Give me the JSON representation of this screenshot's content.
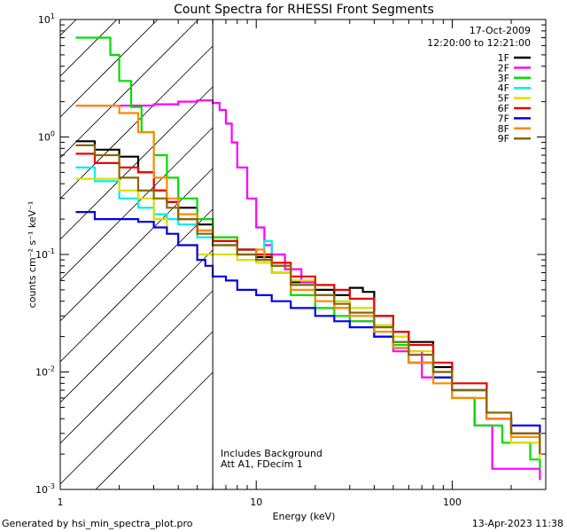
{
  "chart_data": {
    "type": "line",
    "title": "Count Spectra for RHESSI Front Segments",
    "xlabel": "Energy (keV)",
    "ylabel": "counts cm⁻² s⁻¹ keV⁻¹",
    "xscale": "log",
    "yscale": "log",
    "xlim": [
      1,
      300
    ],
    "ylim": [
      0.001,
      10
    ],
    "x_ticks": [
      {
        "value": 1,
        "label": "1"
      },
      {
        "value": 10,
        "label": "10"
      },
      {
        "value": 100,
        "label": "100"
      }
    ],
    "y_ticks": [
      {
        "value": 10,
        "base": "10",
        "exp": "1"
      },
      {
        "value": 1,
        "base": "10",
        "exp": "0"
      },
      {
        "value": 0.1,
        "base": "10",
        "exp": "-1"
      },
      {
        "value": 0.01,
        "base": "10",
        "exp": "-2"
      },
      {
        "value": 0.001,
        "base": "10",
        "exp": "-3"
      }
    ],
    "date": "17-Oct-2009",
    "time_range": "12:20:00 to 12:21:00",
    "shaded_region_x": [
      1,
      6
    ],
    "vertical_line_x": 6,
    "annotations": [
      "Includes Background",
      "Att A1, FDecim 1"
    ],
    "series": [
      {
        "name": "1F",
        "color": "#000000",
        "points": [
          [
            1.2,
            0.92
          ],
          [
            1.5,
            0.78
          ],
          [
            2.0,
            0.68
          ],
          [
            2.5,
            0.5
          ],
          [
            3.0,
            0.35
          ],
          [
            3.5,
            0.28
          ],
          [
            4.0,
            0.25
          ],
          [
            5.0,
            0.18
          ],
          [
            6.0,
            0.13
          ],
          [
            8.0,
            0.11
          ],
          [
            10.0,
            0.095
          ],
          [
            12.0,
            0.07
          ],
          [
            15.0,
            0.058
          ],
          [
            20.0,
            0.05
          ],
          [
            25.0,
            0.045
          ],
          [
            30.0,
            0.052
          ],
          [
            35.0,
            0.048
          ],
          [
            40.0,
            0.03
          ],
          [
            50.0,
            0.022
          ],
          [
            60.0,
            0.018
          ],
          [
            80.0,
            0.011
          ],
          [
            100.0,
            0.007
          ],
          [
            150.0,
            0.004
          ],
          [
            200.0,
            0.003
          ],
          [
            280.0,
            0.002
          ]
        ]
      },
      {
        "name": "2F",
        "color": "#ff00ff",
        "points": [
          [
            1.2,
            1.85
          ],
          [
            2.0,
            1.85
          ],
          [
            3.0,
            1.9
          ],
          [
            4.0,
            2.0
          ],
          [
            5.0,
            2.05
          ],
          [
            6.0,
            1.95
          ],
          [
            6.5,
            1.7
          ],
          [
            7.0,
            1.3
          ],
          [
            7.5,
            0.9
          ],
          [
            8.0,
            0.55
          ],
          [
            9.0,
            0.3
          ],
          [
            10.0,
            0.17
          ],
          [
            11.0,
            0.12
          ],
          [
            12.0,
            0.1
          ],
          [
            14.0,
            0.075
          ],
          [
            17.0,
            0.058
          ],
          [
            20.0,
            0.045
          ],
          [
            25.0,
            0.035
          ],
          [
            30.0,
            0.027
          ],
          [
            40.0,
            0.02
          ],
          [
            50.0,
            0.015
          ],
          [
            70.0,
            0.009
          ],
          [
            100.0,
            0.006
          ],
          [
            130.0,
            0.0035
          ],
          [
            160.0,
            0.0015
          ],
          [
            200.0,
            0.0015
          ],
          [
            280.0,
            0.0012
          ]
        ]
      },
      {
        "name": "3F",
        "color": "#00dd00",
        "points": [
          [
            1.2,
            7.0
          ],
          [
            1.5,
            7.0
          ],
          [
            1.8,
            5.0
          ],
          [
            2.0,
            3.0
          ],
          [
            2.3,
            1.8
          ],
          [
            2.6,
            1.1
          ],
          [
            3.0,
            0.7
          ],
          [
            3.5,
            0.45
          ],
          [
            4.0,
            0.3
          ],
          [
            5.0,
            0.2
          ],
          [
            6.0,
            0.14
          ],
          [
            8.0,
            0.11
          ],
          [
            10.0,
            0.1
          ],
          [
            12.0,
            0.08
          ],
          [
            15.0,
            0.045
          ],
          [
            20.0,
            0.035
          ],
          [
            25.0,
            0.03
          ],
          [
            30.0,
            0.027
          ],
          [
            40.0,
            0.02
          ],
          [
            50.0,
            0.017
          ],
          [
            60.0,
            0.012
          ],
          [
            80.0,
            0.009
          ],
          [
            100.0,
            0.006
          ],
          [
            130.0,
            0.0035
          ],
          [
            180.0,
            0.0025
          ],
          [
            250.0,
            0.0018
          ],
          [
            280.0,
            0.0015
          ]
        ]
      },
      {
        "name": "4F",
        "color": "#00eeee",
        "points": [
          [
            1.2,
            0.55
          ],
          [
            1.5,
            0.42
          ],
          [
            2.0,
            0.3
          ],
          [
            2.5,
            0.25
          ],
          [
            3.0,
            0.22
          ],
          [
            3.5,
            0.2
          ],
          [
            4.0,
            0.18
          ],
          [
            5.0,
            0.14
          ],
          [
            6.0,
            0.12
          ],
          [
            8.0,
            0.1
          ],
          [
            10.0,
            0.09
          ],
          [
            11.0,
            0.13
          ],
          [
            12.0,
            0.08
          ],
          [
            15.0,
            0.055
          ],
          [
            20.0,
            0.045
          ],
          [
            25.0,
            0.04
          ],
          [
            30.0,
            0.035
          ],
          [
            40.0,
            0.025
          ],
          [
            50.0,
            0.018
          ],
          [
            60.0,
            0.014
          ],
          [
            80.0,
            0.01
          ],
          [
            100.0,
            0.007
          ],
          [
            150.0,
            0.004
          ],
          [
            200.0,
            0.003
          ],
          [
            280.0,
            0.0022
          ]
        ]
      },
      {
        "name": "5F",
        "color": "#dddd00",
        "points": [
          [
            1.2,
            0.44
          ],
          [
            1.5,
            0.44
          ],
          [
            2.0,
            0.35
          ],
          [
            2.5,
            0.3
          ],
          [
            3.0,
            0.2
          ],
          [
            3.5,
            0.15
          ],
          [
            4.0,
            0.12
          ],
          [
            5.0,
            0.1
          ],
          [
            6.0,
            0.1
          ],
          [
            8.0,
            0.09
          ],
          [
            10.0,
            0.085
          ],
          [
            12.0,
            0.07
          ],
          [
            15.0,
            0.06
          ],
          [
            20.0,
            0.045
          ],
          [
            25.0,
            0.04
          ],
          [
            30.0,
            0.035
          ],
          [
            40.0,
            0.025
          ],
          [
            50.0,
            0.02
          ],
          [
            60.0,
            0.015
          ],
          [
            80.0,
            0.01
          ],
          [
            100.0,
            0.007
          ],
          [
            150.0,
            0.004
          ],
          [
            200.0,
            0.0025
          ],
          [
            280.0,
            0.0018
          ]
        ]
      },
      {
        "name": "6F",
        "color": "#ee0000",
        "points": [
          [
            1.2,
            0.72
          ],
          [
            1.5,
            0.6
          ],
          [
            2.0,
            0.55
          ],
          [
            2.5,
            0.5
          ],
          [
            3.0,
            0.35
          ],
          [
            3.5,
            0.28
          ],
          [
            4.0,
            0.2
          ],
          [
            5.0,
            0.16
          ],
          [
            6.0,
            0.13
          ],
          [
            8.0,
            0.11
          ],
          [
            10.0,
            0.1
          ],
          [
            12.0,
            0.085
          ],
          [
            15.0,
            0.065
          ],
          [
            20.0,
            0.055
          ],
          [
            25.0,
            0.05
          ],
          [
            30.0,
            0.042
          ],
          [
            40.0,
            0.03
          ],
          [
            50.0,
            0.022
          ],
          [
            60.0,
            0.017
          ],
          [
            80.0,
            0.012
          ],
          [
            100.0,
            0.008
          ],
          [
            150.0,
            0.004
          ],
          [
            200.0,
            0.003
          ],
          [
            280.0,
            0.002
          ]
        ]
      },
      {
        "name": "7F",
        "color": "#0000ee",
        "points": [
          [
            1.2,
            0.23
          ],
          [
            1.5,
            0.2
          ],
          [
            2.0,
            0.2
          ],
          [
            2.5,
            0.19
          ],
          [
            3.0,
            0.17
          ],
          [
            3.5,
            0.15
          ],
          [
            4.0,
            0.12
          ],
          [
            5.0,
            0.09
          ],
          [
            5.5,
            0.08
          ],
          [
            6.0,
            0.065
          ],
          [
            7.0,
            0.06
          ],
          [
            8.0,
            0.05
          ],
          [
            10.0,
            0.045
          ],
          [
            12.0,
            0.04
          ],
          [
            15.0,
            0.035
          ],
          [
            20.0,
            0.03
          ],
          [
            25.0,
            0.027
          ],
          [
            30.0,
            0.024
          ],
          [
            40.0,
            0.02
          ],
          [
            50.0,
            0.016
          ],
          [
            60.0,
            0.012
          ],
          [
            80.0,
            0.009
          ],
          [
            100.0,
            0.007
          ],
          [
            150.0,
            0.004
          ],
          [
            200.0,
            0.0035
          ],
          [
            280.0,
            0.0025
          ]
        ]
      },
      {
        "name": "8F",
        "color": "#ff8800",
        "points": [
          [
            1.2,
            1.85
          ],
          [
            1.5,
            1.85
          ],
          [
            2.0,
            1.6
          ],
          [
            2.5,
            1.1
          ],
          [
            3.0,
            0.45
          ],
          [
            3.5,
            0.3
          ],
          [
            4.0,
            0.22
          ],
          [
            5.0,
            0.16
          ],
          [
            6.0,
            0.12
          ],
          [
            8.0,
            0.1
          ],
          [
            10.0,
            0.11
          ],
          [
            11.0,
            0.09
          ],
          [
            12.0,
            0.08
          ],
          [
            15.0,
            0.05
          ],
          [
            20.0,
            0.04
          ],
          [
            25.0,
            0.035
          ],
          [
            30.0,
            0.03
          ],
          [
            40.0,
            0.022
          ],
          [
            50.0,
            0.016
          ],
          [
            60.0,
            0.012
          ],
          [
            80.0,
            0.008
          ],
          [
            100.0,
            0.006
          ],
          [
            150.0,
            0.004
          ],
          [
            200.0,
            0.0028
          ],
          [
            280.0,
            0.002
          ]
        ]
      },
      {
        "name": "9F",
        "color": "#886600",
        "points": [
          [
            1.2,
            0.85
          ],
          [
            1.5,
            0.7
          ],
          [
            2.0,
            0.45
          ],
          [
            2.5,
            0.35
          ],
          [
            3.0,
            0.3
          ],
          [
            3.5,
            0.25
          ],
          [
            4.0,
            0.2
          ],
          [
            5.0,
            0.15
          ],
          [
            6.0,
            0.12
          ],
          [
            8.0,
            0.1
          ],
          [
            10.0,
            0.09
          ],
          [
            12.0,
            0.08
          ],
          [
            15.0,
            0.055
          ],
          [
            20.0,
            0.045
          ],
          [
            25.0,
            0.038
          ],
          [
            30.0,
            0.032
          ],
          [
            40.0,
            0.024
          ],
          [
            50.0,
            0.018
          ],
          [
            60.0,
            0.014
          ],
          [
            80.0,
            0.01
          ],
          [
            100.0,
            0.007
          ],
          [
            150.0,
            0.0045
          ],
          [
            200.0,
            0.003
          ],
          [
            280.0,
            0.002
          ]
        ]
      }
    ]
  },
  "footer": {
    "generated_by": "Generated by hsi_min_spectra_plot.pro",
    "timestamp": "13-Apr-2023 11:38"
  }
}
